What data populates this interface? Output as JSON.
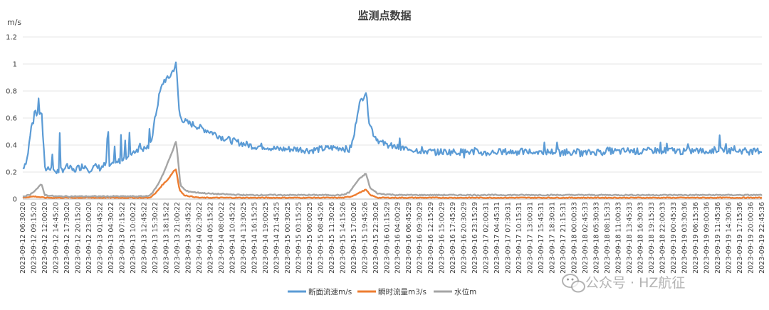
{
  "chart_data": {
    "type": "line",
    "title": "监测点数据",
    "ylabel": "m/s",
    "xlabel": "",
    "ylim": [
      0,
      1.2
    ],
    "yticks": [
      0,
      0.2,
      0.4,
      0.6,
      0.8,
      1,
      1.2
    ],
    "ytick_labels": [
      "0",
      "0.2",
      "0.4",
      "0.6",
      "0.8",
      "1",
      "1.2"
    ],
    "grid": true,
    "legend_position": "bottom",
    "x_tick_labels": [
      "2023-09-12 06:30:20",
      "2023-09-12 09:15:20",
      "2023-09-12 12:00:20",
      "2023-09-12 14:45:20",
      "2023-09-12 17:30:20",
      "2023-09-12 20:15:20",
      "2023-09-12 23:00:20",
      "2023-09-13 01:45:22",
      "2023-09-13 04:30:22",
      "2023-09-13 07:15:22",
      "2023-09-13 10:00:22",
      "2023-09-13 12:45:22",
      "2023-09-13 15:30:22",
      "2023-09-13 18:15:22",
      "2023-09-13 21:00:22",
      "2023-09-13 23:45:22",
      "2023-09-14 02:30:22",
      "2023-09-14 05:15:22",
      "2023-09-14 08:00:22",
      "2023-09-14 10:45:22",
      "2023-09-14 13:30:25",
      "2023-09-14 16:15:25",
      "2023-09-14 19:00:25",
      "2023-09-14 21:45:25",
      "2023-09-15 00:30:25",
      "2023-09-15 03:15:25",
      "2023-09-15 06:00:25",
      "2023-09-15 08:45:26",
      "2023-09-15 11:30:26",
      "2023-09-15 14:15:26",
      "2023-09-15 17:00:26",
      "2023-09-15 19:45:26",
      "2023-09-15 22:30:26",
      "2023-09-16 01:15:29",
      "2023-09-16 04:00:29",
      "2023-09-16 06:45:29",
      "2023-09-16 09:30:29",
      "2023-09-16 12:15:29",
      "2023-09-16 15:00:29",
      "2023-09-16 17:45:29",
      "2023-09-16 20:30:29",
      "2023-09-16 23:15:29",
      "2023-09-17 02:00:31",
      "2023-09-17 04:45:31",
      "2023-09-17 07:30:31",
      "2023-09-17 10:15:31",
      "2023-09-17 13:00:31",
      "2023-09-17 15:45:31",
      "2023-09-17 18:30:31",
      "2023-09-17 21:15:31",
      "2023-09-18 00:00:33",
      "2023-09-18 02:45:33",
      "2023-09-18 05:30:33",
      "2023-09-18 08:15:33",
      "2023-09-18 11:00:33",
      "2023-09-18 13:45:33",
      "2023-09-18 16:30:33",
      "2023-09-18 19:15:33",
      "2023-09-18 22:00:33",
      "2023-09-19 00:45:33",
      "2023-09-19 03:30:36",
      "2023-09-19 06:15:36",
      "2023-09-19 09:00:36",
      "2023-09-19 11:45:36",
      "2023-09-19 14:30:36",
      "2023-09-19 17:15:36",
      "2023-09-19 20:00:36",
      "2023-09-19 22:45:36"
    ],
    "x_span": [
      0,
      67
    ],
    "series": [
      {
        "name": "断面流速m/s",
        "color": "#5b9bd5",
        "keypoints": [
          [
            0,
            0.23
          ],
          [
            0.4,
            0.3
          ],
          [
            0.8,
            0.55
          ],
          [
            1.3,
            0.63
          ],
          [
            1.7,
            0.65
          ],
          [
            2.0,
            0.22
          ],
          [
            2.6,
            0.24
          ],
          [
            3,
            0.2
          ],
          [
            3.6,
            0.22
          ],
          [
            4,
            0.24
          ],
          [
            4.6,
            0.21
          ],
          [
            5,
            0.23
          ],
          [
            5.6,
            0.25
          ],
          [
            6,
            0.22
          ],
          [
            6.6,
            0.24
          ],
          [
            7,
            0.23
          ],
          [
            7.6,
            0.26
          ],
          [
            8,
            0.24
          ],
          [
            8.6,
            0.27
          ],
          [
            9,
            0.3
          ],
          [
            9.6,
            0.33
          ],
          [
            10,
            0.35
          ],
          [
            10.6,
            0.38
          ],
          [
            11,
            0.37
          ],
          [
            11.6,
            0.4
          ],
          [
            12,
            0.6
          ],
          [
            12.4,
            0.78
          ],
          [
            12.8,
            0.88
          ],
          [
            13.2,
            0.89
          ],
          [
            13.6,
            0.95
          ],
          [
            13.9,
            1.0
          ],
          [
            14.2,
            0.62
          ],
          [
            14.6,
            0.58
          ],
          [
            15,
            0.56
          ],
          [
            15.6,
            0.55
          ],
          [
            16,
            0.53
          ],
          [
            17,
            0.5
          ],
          [
            18,
            0.46
          ],
          [
            19,
            0.43
          ],
          [
            20,
            0.41
          ],
          [
            21,
            0.39
          ],
          [
            22,
            0.39
          ],
          [
            23,
            0.37
          ],
          [
            24,
            0.37
          ],
          [
            25,
            0.37
          ],
          [
            26,
            0.36
          ],
          [
            27,
            0.37
          ],
          [
            28,
            0.38
          ],
          [
            29,
            0.38
          ],
          [
            29.6,
            0.36
          ],
          [
            30,
            0.45
          ],
          [
            30.4,
            0.68
          ],
          [
            30.8,
            0.75
          ],
          [
            31.1,
            0.8
          ],
          [
            31.4,
            0.58
          ],
          [
            31.8,
            0.48
          ],
          [
            32.4,
            0.42
          ],
          [
            33,
            0.4
          ],
          [
            34,
            0.38
          ],
          [
            35,
            0.37
          ],
          [
            36,
            0.36
          ],
          [
            37,
            0.35
          ],
          [
            38,
            0.35
          ],
          [
            39,
            0.35
          ],
          [
            40,
            0.35
          ],
          [
            41,
            0.35
          ],
          [
            42,
            0.34
          ],
          [
            43,
            0.35
          ],
          [
            44,
            0.35
          ],
          [
            45,
            0.35
          ],
          [
            46,
            0.35
          ],
          [
            47,
            0.35
          ],
          [
            48,
            0.35
          ],
          [
            49,
            0.35
          ],
          [
            50,
            0.35
          ],
          [
            51,
            0.34
          ],
          [
            52,
            0.35
          ],
          [
            53,
            0.36
          ],
          [
            54,
            0.35
          ],
          [
            55,
            0.36
          ],
          [
            56,
            0.35
          ],
          [
            57,
            0.36
          ],
          [
            58,
            0.36
          ],
          [
            59,
            0.36
          ],
          [
            60,
            0.35
          ],
          [
            61,
            0.36
          ],
          [
            62,
            0.35
          ],
          [
            63,
            0.37
          ],
          [
            64,
            0.36
          ],
          [
            65,
            0.36
          ],
          [
            66,
            0.35
          ],
          [
            67,
            0.36
          ]
        ]
      },
      {
        "name": "瞬时流量m3/s",
        "color": "#ed7d31",
        "keypoints": [
          [
            0,
            0.01
          ],
          [
            1,
            0.02
          ],
          [
            2,
            0.01
          ],
          [
            4,
            0.01
          ],
          [
            6,
            0.01
          ],
          [
            8,
            0.01
          ],
          [
            10,
            0.01
          ],
          [
            11.5,
            0.01
          ],
          [
            12,
            0.04
          ],
          [
            12.6,
            0.1
          ],
          [
            13.2,
            0.15
          ],
          [
            13.7,
            0.21
          ],
          [
            13.9,
            0.22
          ],
          [
            14.2,
            0.07
          ],
          [
            14.6,
            0.03
          ],
          [
            15.2,
            0.02
          ],
          [
            16,
            0.01
          ],
          [
            20,
            0.01
          ],
          [
            25,
            0.01
          ],
          [
            29,
            0.01
          ],
          [
            29.8,
            0.02
          ],
          [
            30.6,
            0.05
          ],
          [
            31.1,
            0.07
          ],
          [
            31.5,
            0.03
          ],
          [
            32.2,
            0.01
          ],
          [
            36,
            0.01
          ],
          [
            40,
            0.01
          ],
          [
            45,
            0.01
          ],
          [
            50,
            0.01
          ],
          [
            55,
            0.01
          ],
          [
            60,
            0.01
          ],
          [
            65,
            0.01
          ],
          [
            67,
            0.01
          ]
        ]
      },
      {
        "name": "水位m",
        "color": "#a5a5a5",
        "keypoints": [
          [
            0,
            0.02
          ],
          [
            0.6,
            0.03
          ],
          [
            1.2,
            0.07
          ],
          [
            1.7,
            0.11
          ],
          [
            2.0,
            0.03
          ],
          [
            3,
            0.02
          ],
          [
            6,
            0.02
          ],
          [
            9,
            0.02
          ],
          [
            11,
            0.02
          ],
          [
            11.6,
            0.03
          ],
          [
            12.2,
            0.1
          ],
          [
            12.8,
            0.2
          ],
          [
            13.4,
            0.32
          ],
          [
            13.9,
            0.43
          ],
          [
            14.3,
            0.1
          ],
          [
            14.8,
            0.06
          ],
          [
            15.6,
            0.05
          ],
          [
            17,
            0.04
          ],
          [
            20,
            0.03
          ],
          [
            25,
            0.03
          ],
          [
            29,
            0.03
          ],
          [
            29.6,
            0.05
          ],
          [
            30.4,
            0.14
          ],
          [
            31.1,
            0.19
          ],
          [
            31.5,
            0.08
          ],
          [
            32.2,
            0.04
          ],
          [
            34,
            0.03
          ],
          [
            40,
            0.03
          ],
          [
            45,
            0.03
          ],
          [
            50,
            0.03
          ],
          [
            55,
            0.03
          ],
          [
            60,
            0.03
          ],
          [
            65,
            0.03
          ],
          [
            67,
            0.03
          ]
        ]
      }
    ]
  },
  "watermark": {
    "text": "公众号 · HZ航征",
    "icon": "wechat-icon"
  }
}
